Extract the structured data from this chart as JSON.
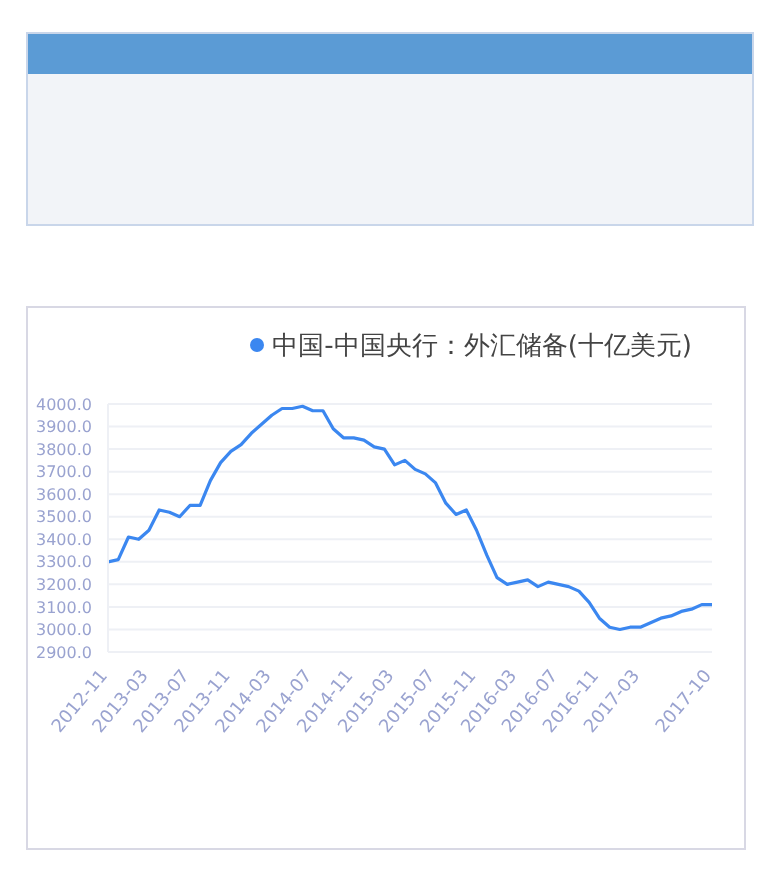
{
  "chart_data": {
    "type": "line",
    "categories": [
      "2012-11",
      null,
      null,
      null,
      "2013-03",
      null,
      null,
      null,
      "2013-07",
      null,
      null,
      null,
      "2013-11",
      null,
      null,
      null,
      "2014-03",
      null,
      null,
      null,
      "2014-07",
      null,
      null,
      null,
      "2014-11",
      null,
      null,
      null,
      "2015-03",
      null,
      null,
      null,
      "2015-07",
      null,
      null,
      null,
      "2015-11",
      null,
      null,
      null,
      "2016-03",
      null,
      null,
      null,
      "2016-07",
      null,
      null,
      null,
      "2016-11",
      null,
      null,
      null,
      "2017-03",
      null,
      null,
      null,
      null,
      null,
      null,
      "2017-10"
    ],
    "series": [
      {
        "name": "中国-中国央行：外汇储备(十亿美元)",
        "color": "#3b87f0",
        "values": [
          3300,
          3310,
          3410,
          3400,
          3440,
          3530,
          3520,
          3500,
          3550,
          3550,
          3660,
          3740,
          3790,
          3820,
          3870,
          3910,
          3950,
          3980,
          3980,
          3990,
          3970,
          3970,
          3890,
          3850,
          3850,
          3840,
          3810,
          3800,
          3730,
          3750,
          3710,
          3690,
          3650,
          3560,
          3510,
          3530,
          3440,
          3330,
          3230,
          3200,
          3210,
          3220,
          3190,
          3210,
          3200,
          3190,
          3170,
          3120,
          3050,
          3010,
          3000,
          3010,
          3010,
          3030,
          3050,
          3060,
          3080,
          3090,
          3110,
          3110
        ]
      }
    ],
    "ylim": [
      2900,
      4000
    ],
    "yticks": [
      {
        "value": 2900,
        "label": "2900.0"
      },
      {
        "value": 3000,
        "label": "3000.0"
      },
      {
        "value": 3100,
        "label": "3100.0"
      },
      {
        "value": 3200,
        "label": "3200.0"
      },
      {
        "value": 3300,
        "label": "3300.0"
      },
      {
        "value": 3400,
        "label": "3400.0"
      },
      {
        "value": 3500,
        "label": "3500.0"
      },
      {
        "value": 3600,
        "label": "3600.0"
      },
      {
        "value": 3700,
        "label": "3700.0"
      },
      {
        "value": 3800,
        "label": "3800.0"
      },
      {
        "value": 3900,
        "label": "3900.0"
      },
      {
        "value": 4000,
        "label": "4000.0"
      }
    ],
    "grid": "y",
    "legend": "top right",
    "marker": "none",
    "line_style": "solid"
  }
}
